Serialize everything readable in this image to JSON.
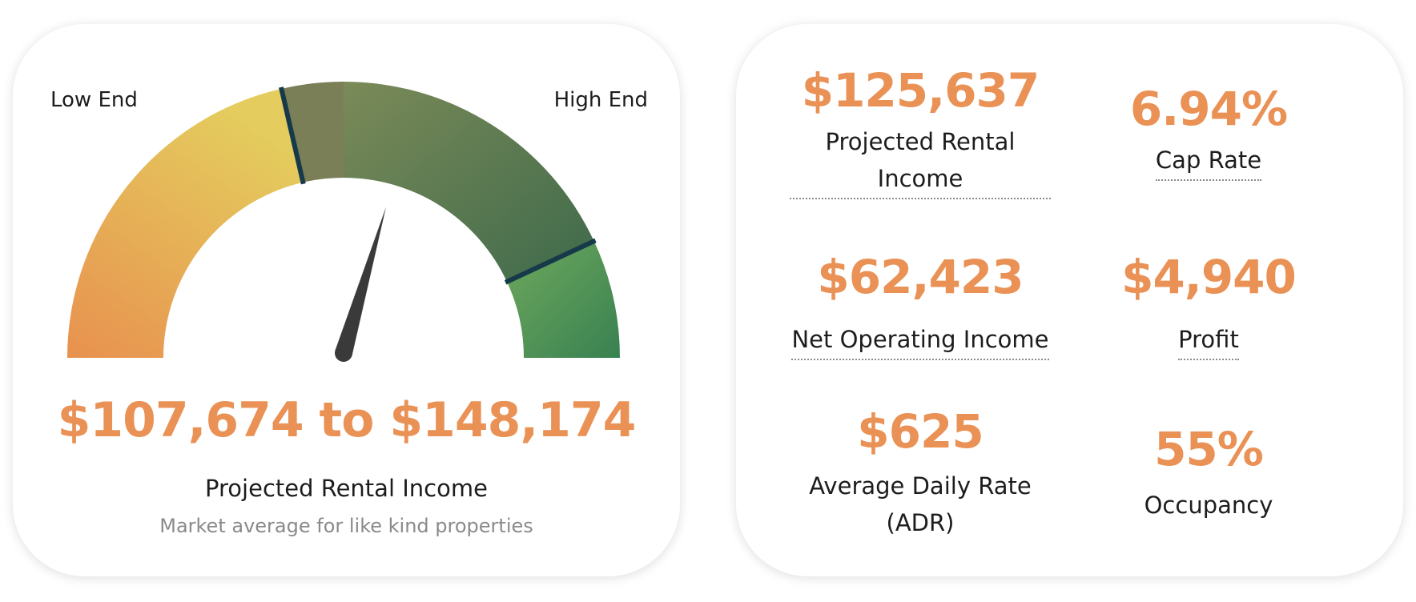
{
  "gauge": {
    "low_end_label": "Low End",
    "high_end_label": "High End",
    "range_value": "$107,674 to $148,174",
    "range_title": "Projected Rental Income",
    "range_subtitle": "Market average for like kind properties",
    "needle_level": 0.59,
    "colors": {
      "accent": "#ea9155",
      "low": "#e8914f",
      "mid": "#e4c95c",
      "high_dark": "#3c6b48",
      "high_green": "#3b8a55"
    }
  },
  "stats": [
    {
      "value": "$125,637",
      "label": "Projected Rental Income",
      "dotted": true
    },
    {
      "value": "6.94%",
      "label": "Cap Rate",
      "dotted": true
    },
    {
      "value": "$62,423",
      "label": "Net Operating Income",
      "dotted": true
    },
    {
      "value": "$4,940",
      "label": "Profit",
      "dotted": true
    },
    {
      "value": "$625",
      "label": "Average Daily Rate (ADR)",
      "dotted": false
    },
    {
      "value": "55%",
      "label": "Occupancy",
      "dotted": false
    }
  ]
}
